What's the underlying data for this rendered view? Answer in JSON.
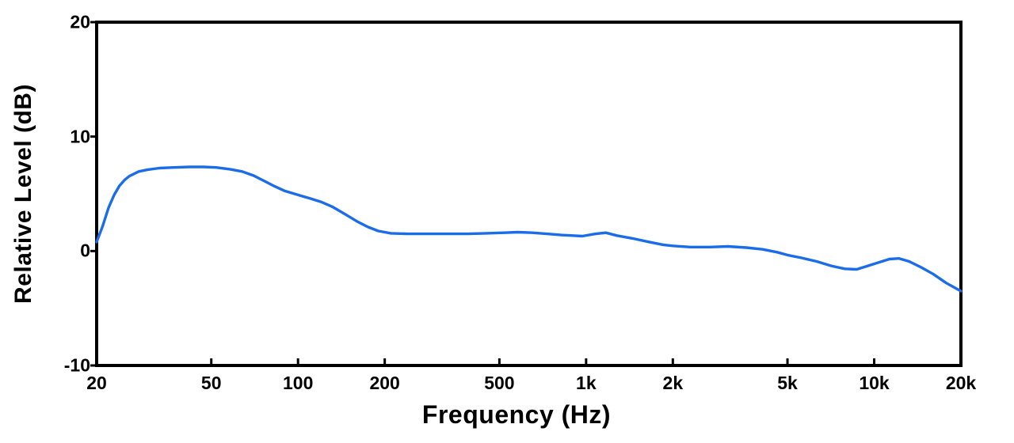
{
  "chart_data": {
    "type": "line",
    "title": "",
    "xlabel": "Frequency (Hz)",
    "ylabel": "Relative Level (dB)",
    "x_scale": "log",
    "xlim": [
      20,
      20000
    ],
    "ylim": [
      -10,
      20
    ],
    "grid": false,
    "legend": "none",
    "line_color": "#1b6ce8",
    "axis_color": "#000000",
    "background_color": "#ffffff",
    "x_ticks": [
      {
        "value": 20,
        "label": "20"
      },
      {
        "value": 50,
        "label": "50"
      },
      {
        "value": 100,
        "label": "100"
      },
      {
        "value": 200,
        "label": "200"
      },
      {
        "value": 500,
        "label": "500"
      },
      {
        "value": 1000,
        "label": "1k"
      },
      {
        "value": 2000,
        "label": "2k"
      },
      {
        "value": 5000,
        "label": "5k"
      },
      {
        "value": 10000,
        "label": "10k"
      },
      {
        "value": 20000,
        "label": "20k"
      }
    ],
    "y_ticks": [
      {
        "value": 20,
        "label": "20"
      },
      {
        "value": 10,
        "label": "10"
      },
      {
        "value": 0,
        "label": "0"
      },
      {
        "value": -10,
        "label": "-10"
      }
    ],
    "series": [
      {
        "name": "frequency-response",
        "points": [
          [
            20,
            0.8
          ],
          [
            21,
            2.2
          ],
          [
            22,
            3.8
          ],
          [
            23,
            4.9
          ],
          [
            24,
            5.7
          ],
          [
            25,
            6.2
          ],
          [
            26,
            6.55
          ],
          [
            28,
            6.95
          ],
          [
            30,
            7.1
          ],
          [
            33,
            7.25
          ],
          [
            37,
            7.3
          ],
          [
            42,
            7.35
          ],
          [
            47,
            7.35
          ],
          [
            52,
            7.3
          ],
          [
            58,
            7.15
          ],
          [
            64,
            6.95
          ],
          [
            70,
            6.6
          ],
          [
            76,
            6.15
          ],
          [
            83,
            5.65
          ],
          [
            90,
            5.25
          ],
          [
            100,
            4.9
          ],
          [
            110,
            4.6
          ],
          [
            120,
            4.3
          ],
          [
            132,
            3.85
          ],
          [
            145,
            3.25
          ],
          [
            160,
            2.6
          ],
          [
            175,
            2.1
          ],
          [
            190,
            1.75
          ],
          [
            210,
            1.55
          ],
          [
            240,
            1.5
          ],
          [
            280,
            1.5
          ],
          [
            330,
            1.5
          ],
          [
            390,
            1.5
          ],
          [
            450,
            1.55
          ],
          [
            520,
            1.6
          ],
          [
            580,
            1.65
          ],
          [
            650,
            1.6
          ],
          [
            730,
            1.5
          ],
          [
            820,
            1.4
          ],
          [
            900,
            1.35
          ],
          [
            970,
            1.3
          ],
          [
            1080,
            1.5
          ],
          [
            1170,
            1.6
          ],
          [
            1280,
            1.35
          ],
          [
            1450,
            1.1
          ],
          [
            1650,
            0.8
          ],
          [
            1850,
            0.55
          ],
          [
            2000,
            0.45
          ],
          [
            2300,
            0.35
          ],
          [
            2700,
            0.35
          ],
          [
            3100,
            0.4
          ],
          [
            3600,
            0.3
          ],
          [
            4100,
            0.15
          ],
          [
            4600,
            -0.1
          ],
          [
            5000,
            -0.35
          ],
          [
            5600,
            -0.6
          ],
          [
            6300,
            -0.9
          ],
          [
            7100,
            -1.3
          ],
          [
            7900,
            -1.55
          ],
          [
            8700,
            -1.6
          ],
          [
            9500,
            -1.3
          ],
          [
            10500,
            -0.95
          ],
          [
            11300,
            -0.7
          ],
          [
            12200,
            -0.65
          ],
          [
            13200,
            -0.9
          ],
          [
            14500,
            -1.4
          ],
          [
            16000,
            -2.0
          ],
          [
            17800,
            -2.8
          ],
          [
            20000,
            -3.5
          ]
        ]
      }
    ]
  }
}
